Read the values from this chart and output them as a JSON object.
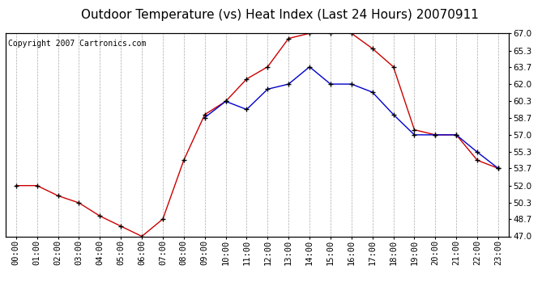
{
  "title": "Outdoor Temperature (vs) Heat Index (Last 24 Hours) 20070911",
  "copyright": "Copyright 2007 Cartronics.com",
  "background_color": "#ffffff",
  "plot_bg_color": "#ffffff",
  "grid_color": "#aaaaaa",
  "hours": [
    0,
    1,
    2,
    3,
    4,
    5,
    6,
    7,
    8,
    9,
    10,
    11,
    12,
    13,
    14,
    15,
    16,
    17,
    18,
    19,
    20,
    21,
    22,
    23
  ],
  "x_labels": [
    "00:00",
    "01:00",
    "02:00",
    "03:00",
    "04:00",
    "05:00",
    "06:00",
    "07:00",
    "08:00",
    "09:00",
    "10:00",
    "11:00",
    "12:00",
    "13:00",
    "14:00",
    "15:00",
    "16:00",
    "17:00",
    "18:00",
    "19:00",
    "20:00",
    "21:00",
    "22:00",
    "23:00"
  ],
  "red_temp": [
    52.0,
    52.0,
    51.0,
    50.3,
    49.0,
    48.0,
    47.0,
    48.7,
    54.5,
    59.0,
    60.3,
    62.5,
    63.7,
    66.5,
    67.0,
    67.0,
    67.0,
    65.5,
    63.7,
    57.5,
    57.0,
    57.0,
    54.5,
    53.7
  ],
  "blue_heat_idx_hours": [
    9,
    10,
    11,
    12,
    13,
    14,
    15,
    16,
    17,
    18,
    19,
    20,
    21,
    22,
    23
  ],
  "blue_heat_idx": [
    58.7,
    60.3,
    59.5,
    61.5,
    62.0,
    63.7,
    62.0,
    62.0,
    61.2,
    59.0,
    57.0,
    57.0,
    57.0,
    55.3,
    53.7
  ],
  "ylim": [
    47.0,
    67.0
  ],
  "yticks": [
    47.0,
    48.7,
    50.3,
    52.0,
    53.7,
    55.3,
    57.0,
    58.7,
    60.3,
    62.0,
    63.7,
    65.3,
    67.0
  ],
  "red_color": "#cc0000",
  "blue_color": "#0000cc",
  "marker_color": "#000000",
  "title_fontsize": 11,
  "copyright_fontsize": 7,
  "tick_fontsize": 7.5
}
